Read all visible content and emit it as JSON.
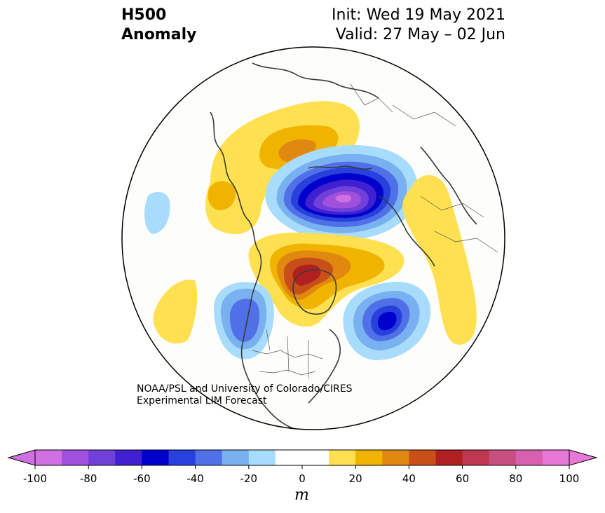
{
  "title": {
    "product_line1": "H500",
    "product_line2": "Anomaly",
    "init": "Init: Wed 19 May 2021",
    "valid": "Valid: 27 May – 02 Jun"
  },
  "credit": {
    "line1": "NOAA/PSL and University of Colorado/CIRES",
    "line2": "Experimental LIM Forecast"
  },
  "colorbar": {
    "unit": "m",
    "ticks": [
      "-100",
      "-80",
      "-60",
      "-40",
      "-20",
      "0",
      "20",
      "40",
      "60",
      "80",
      "100"
    ],
    "levels": [
      -100,
      -90,
      -80,
      -70,
      -60,
      -50,
      -40,
      -30,
      -20,
      -10,
      10,
      20,
      30,
      40,
      50,
      60,
      70,
      80,
      90,
      100
    ],
    "colors": [
      "#d070e0",
      "#a050dc",
      "#7040d8",
      "#4020d0",
      "#0000cc",
      "#2840dc",
      "#5070e8",
      "#78b0f0",
      "#a8dcfc",
      "#ffffff",
      "#ffffff",
      "#ffe050",
      "#f0b400",
      "#e08810",
      "#c85018",
      "#b02020",
      "#c03850",
      "#c85080",
      "#d860b0",
      "#e878d8"
    ],
    "under_color": "#d070e0",
    "over_color": "#e878d8"
  },
  "anomalies": [
    {
      "region": "western-russia",
      "peak_m": 45
    },
    {
      "region": "north-of-siberia",
      "peak_m": 25
    },
    {
      "region": "arctic-ocean",
      "peak_m": -95
    },
    {
      "region": "greenland",
      "peak_m": 65
    },
    {
      "region": "europe",
      "peak_m": 15
    },
    {
      "region": "central-pacific",
      "peak_m": 15
    },
    {
      "region": "east-pacific",
      "peak_m": 15
    },
    {
      "region": "gulf-of-alaska",
      "peak_m": -45
    },
    {
      "region": "north-atlantic",
      "peak_m": -60
    }
  ]
}
